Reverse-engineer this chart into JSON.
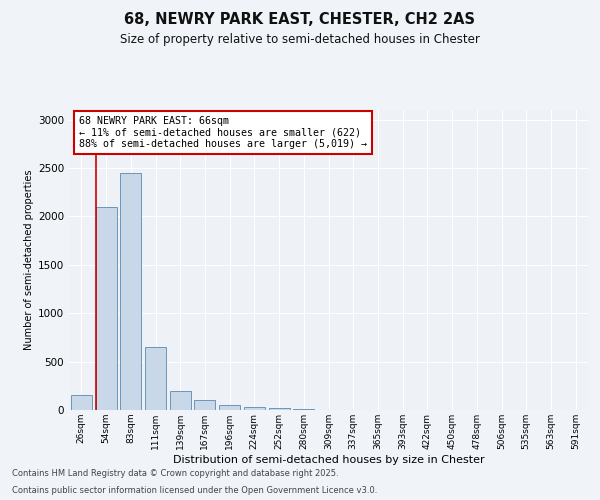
{
  "title1": "68, NEWRY PARK EAST, CHESTER, CH2 2AS",
  "title2": "Size of property relative to semi-detached houses in Chester",
  "xlabel": "Distribution of semi-detached houses by size in Chester",
  "ylabel": "Number of semi-detached properties",
  "categories": [
    "26sqm",
    "54sqm",
    "83sqm",
    "111sqm",
    "139sqm",
    "167sqm",
    "196sqm",
    "224sqm",
    "252sqm",
    "280sqm",
    "309sqm",
    "337sqm",
    "365sqm",
    "393sqm",
    "422sqm",
    "450sqm",
    "478sqm",
    "506sqm",
    "535sqm",
    "563sqm",
    "591sqm"
  ],
  "values": [
    150,
    2100,
    2450,
    650,
    200,
    100,
    50,
    30,
    20,
    10,
    5,
    2,
    1,
    1,
    0,
    0,
    0,
    0,
    0,
    0,
    0
  ],
  "bar_color": "#c8d8e8",
  "bar_edge_color": "#5a8ab0",
  "property_bin_index": 1,
  "annotation_title": "68 NEWRY PARK EAST: 66sqm",
  "annotation_line1": "← 11% of semi-detached houses are smaller (622)",
  "annotation_line2": "88% of semi-detached houses are larger (5,019) →",
  "annotation_box_color": "#ffffff",
  "annotation_box_edge": "#cc0000",
  "vline_color": "#cc0000",
  "ylim": [
    0,
    3100
  ],
  "yticks": [
    0,
    500,
    1000,
    1500,
    2000,
    2500,
    3000
  ],
  "bg_color": "#eef2f7",
  "grid_color": "#ffffff",
  "footer1": "Contains HM Land Registry data © Crown copyright and database right 2025.",
  "footer2": "Contains public sector information licensed under the Open Government Licence v3.0."
}
